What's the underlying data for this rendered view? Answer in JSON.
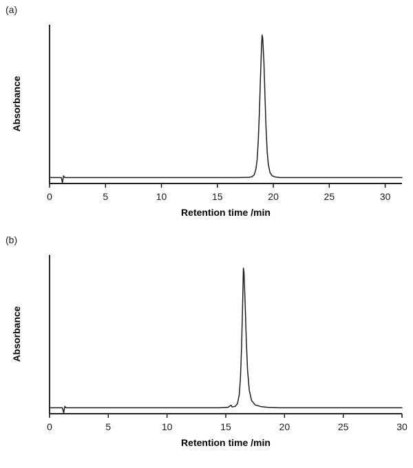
{
  "chart_data": [
    {
      "type": "line",
      "label": "(a)",
      "title": "",
      "xlabel": "Retention time /min",
      "ylabel": "Absorbance",
      "xlim": [
        0,
        31.5
      ],
      "ylim": [
        -0.04,
        1.04
      ],
      "xticks": [
        0,
        5,
        10,
        15,
        20,
        25,
        30
      ],
      "yticks": [],
      "grid": false,
      "legend": false,
      "line_color": "#1c1c1c",
      "peak_retention_time_min": 19.0,
      "peak_relative_height": 0.97,
      "baseline_level": 0.0,
      "injection_blip_min": 1.2,
      "points": [
        [
          0,
          0
        ],
        [
          0.5,
          0
        ],
        [
          1.05,
          0
        ],
        [
          1.15,
          -0.035
        ],
        [
          1.25,
          0.012
        ],
        [
          1.35,
          0
        ],
        [
          3,
          0
        ],
        [
          5,
          0
        ],
        [
          8,
          0
        ],
        [
          10,
          0
        ],
        [
          12,
          0
        ],
        [
          15,
          0
        ],
        [
          17,
          0
        ],
        [
          17.8,
          0.002
        ],
        [
          18.1,
          0.006
        ],
        [
          18.3,
          0.02
        ],
        [
          18.45,
          0.06
        ],
        [
          18.55,
          0.12
        ],
        [
          18.65,
          0.24
        ],
        [
          18.75,
          0.44
        ],
        [
          18.85,
          0.68
        ],
        [
          18.95,
          0.9
        ],
        [
          19.0,
          0.97
        ],
        [
          19.05,
          0.95
        ],
        [
          19.15,
          0.8
        ],
        [
          19.25,
          0.56
        ],
        [
          19.35,
          0.34
        ],
        [
          19.45,
          0.18
        ],
        [
          19.55,
          0.09
        ],
        [
          19.7,
          0.035
        ],
        [
          19.9,
          0.012
        ],
        [
          20.2,
          0.004
        ],
        [
          20.6,
          0
        ],
        [
          23,
          0
        ],
        [
          26,
          0
        ],
        [
          29,
          0
        ],
        [
          31.5,
          0
        ]
      ]
    },
    {
      "type": "line",
      "label": "(b)",
      "title": "",
      "xlabel": "Retention time /min",
      "ylabel": "Absorbance",
      "xlim": [
        0,
        30
      ],
      "ylim": [
        -0.04,
        1.04
      ],
      "xticks": [
        0,
        5,
        10,
        15,
        20,
        25,
        30
      ],
      "yticks": [],
      "grid": false,
      "legend": false,
      "line_color": "#1c1c1c",
      "peak_retention_time_min": 16.5,
      "peak_relative_height": 0.95,
      "baseline_level": 0.0,
      "injection_blip_min": 1.25,
      "points": [
        [
          0,
          0
        ],
        [
          0.5,
          0
        ],
        [
          1.1,
          0
        ],
        [
          1.2,
          -0.035
        ],
        [
          1.3,
          0.01
        ],
        [
          1.4,
          0
        ],
        [
          3,
          0
        ],
        [
          5,
          0
        ],
        [
          8,
          0
        ],
        [
          10,
          0
        ],
        [
          12,
          0
        ],
        [
          14.5,
          0
        ],
        [
          15.2,
          0.004
        ],
        [
          15.45,
          0.018
        ],
        [
          15.55,
          0.006
        ],
        [
          15.8,
          0.01
        ],
        [
          16.0,
          0.03
        ],
        [
          16.15,
          0.09
        ],
        [
          16.25,
          0.2
        ],
        [
          16.35,
          0.42
        ],
        [
          16.45,
          0.75
        ],
        [
          16.5,
          0.95
        ],
        [
          16.55,
          0.92
        ],
        [
          16.65,
          0.7
        ],
        [
          16.75,
          0.45
        ],
        [
          16.85,
          0.26
        ],
        [
          17.0,
          0.12
        ],
        [
          17.2,
          0.05
        ],
        [
          17.5,
          0.02
        ],
        [
          18.0,
          0.008
        ],
        [
          18.6,
          0.003
        ],
        [
          19.5,
          0
        ],
        [
          22,
          0
        ],
        [
          25,
          0
        ],
        [
          28,
          0
        ],
        [
          30,
          0
        ]
      ]
    }
  ]
}
